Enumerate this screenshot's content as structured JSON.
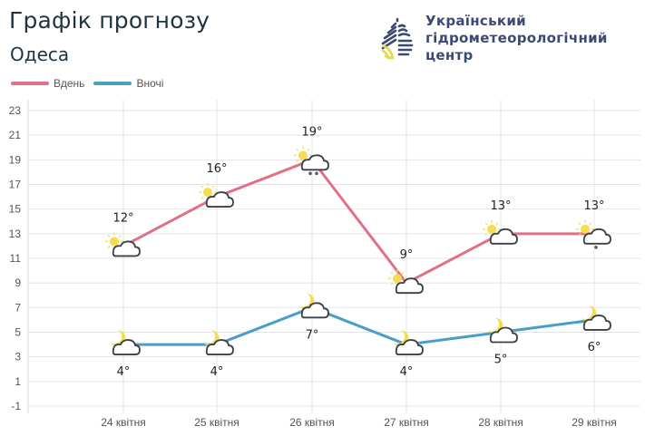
{
  "header": {
    "title": "Графік прогнозу",
    "city": "Одеса"
  },
  "logo": {
    "line1": "Український",
    "line2": "гідрометеорологічний",
    "line3": "центр",
    "icon": "drop-logo-icon"
  },
  "legend": [
    {
      "label": "Вдень",
      "color": "#e07088"
    },
    {
      "label": "Вночі",
      "color": "#4a9cc9"
    }
  ],
  "chart_data": {
    "type": "line",
    "title": "Графік прогнозу — Одеса",
    "xlabel": "",
    "ylabel": "",
    "categories": [
      "24 квітня",
      "25 квітня",
      "26 квітня",
      "27 квітня",
      "28 квітня",
      "29 квітня"
    ],
    "yticks": [
      23,
      21,
      19,
      17,
      15,
      13,
      11,
      9,
      7,
      5,
      3,
      1,
      -1
    ],
    "ylim": [
      -1,
      23
    ],
    "grid": true,
    "legend_position": "top-left",
    "series": [
      {
        "name": "Вдень",
        "color": "#e07088",
        "values": [
          12,
          16,
          19,
          9,
          13,
          13
        ],
        "labels": [
          "12°",
          "16°",
          "19°",
          "9°",
          "13°",
          "13°"
        ],
        "icons": [
          "partly-cloudy-day-icon",
          "partly-cloudy-day-icon",
          "partly-cloudy-day-rain-icon",
          "partly-cloudy-day-icon",
          "partly-cloudy-day-icon",
          "partly-cloudy-day-light-rain-icon"
        ]
      },
      {
        "name": "Вночі",
        "color": "#4a9cc9",
        "values": [
          4,
          4,
          7,
          4,
          5,
          6
        ],
        "labels": [
          "4°",
          "4°",
          "7°",
          "4°",
          "5°",
          "6°"
        ],
        "icons": [
          "partly-cloudy-night-icon",
          "partly-cloudy-night-icon",
          "partly-cloudy-night-icon",
          "partly-cloudy-night-icon",
          "partly-cloudy-night-icon",
          "partly-cloudy-night-icon"
        ]
      }
    ]
  }
}
